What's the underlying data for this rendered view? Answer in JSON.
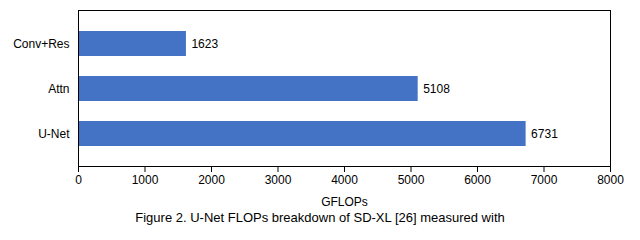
{
  "chart_data": {
    "type": "bar",
    "orientation": "horizontal",
    "categories": [
      "U-Net",
      "Attn",
      "Conv+Res"
    ],
    "values": [
      6731,
      5108,
      1623
    ],
    "color": "#4472C4",
    "xlabel": "GFLOPs",
    "xlim": [
      0,
      8000
    ],
    "xticks": [
      0,
      1000,
      2000,
      3000,
      4000,
      5000,
      6000,
      7000,
      8000
    ],
    "data_labels": true,
    "grid": false,
    "caption": "Figure 2. U-Net FLOPs breakdown of SD-XL [26] measured with"
  }
}
